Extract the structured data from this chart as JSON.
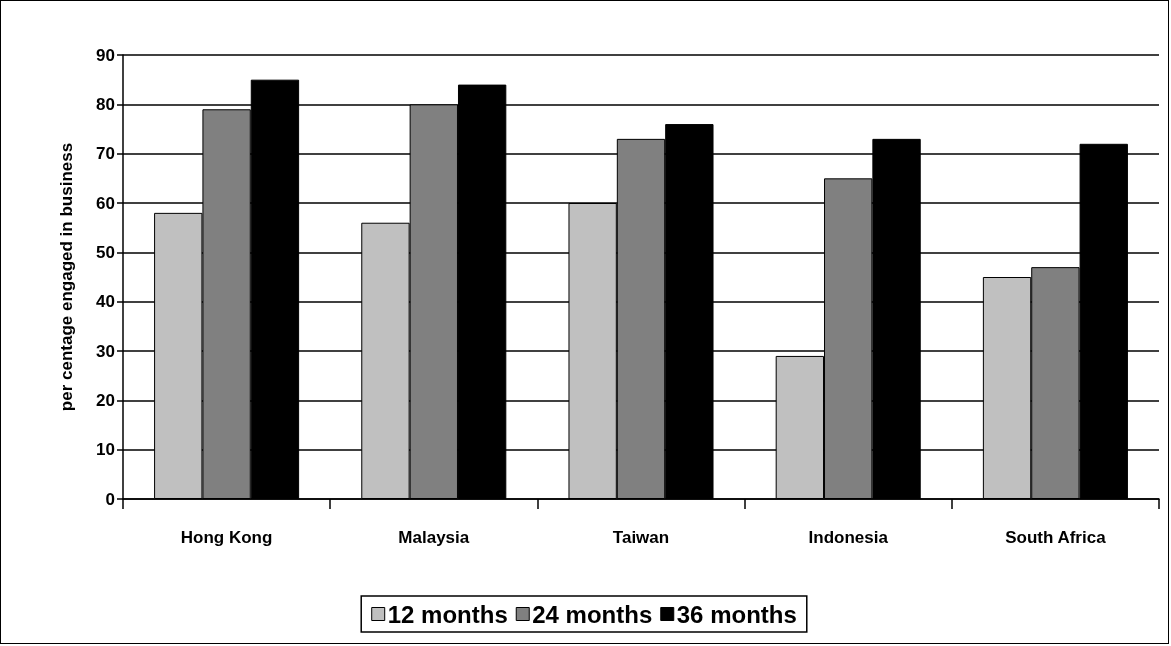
{
  "chart_data": {
    "type": "bar",
    "ylabel": "per centage engaged in business",
    "categories": [
      "Hong Kong",
      "Malaysia",
      "Taiwan",
      "Indonesia",
      "South Africa"
    ],
    "series": [
      {
        "name": "12 months",
        "color": "#c0c0c0",
        "values": [
          58,
          56,
          60,
          29,
          45
        ]
      },
      {
        "name": "24 months",
        "color": "#808080",
        "values": [
          79,
          80,
          73,
          65,
          47
        ]
      },
      {
        "name": "36 months",
        "color": "#000000",
        "values": [
          85,
          84,
          76,
          73,
          72
        ]
      }
    ],
    "ylim": [
      0,
      90
    ],
    "yticks": [
      0,
      10,
      20,
      30,
      40,
      50,
      60,
      70,
      80,
      90
    ],
    "grid": "y",
    "legend": "bottom"
  }
}
